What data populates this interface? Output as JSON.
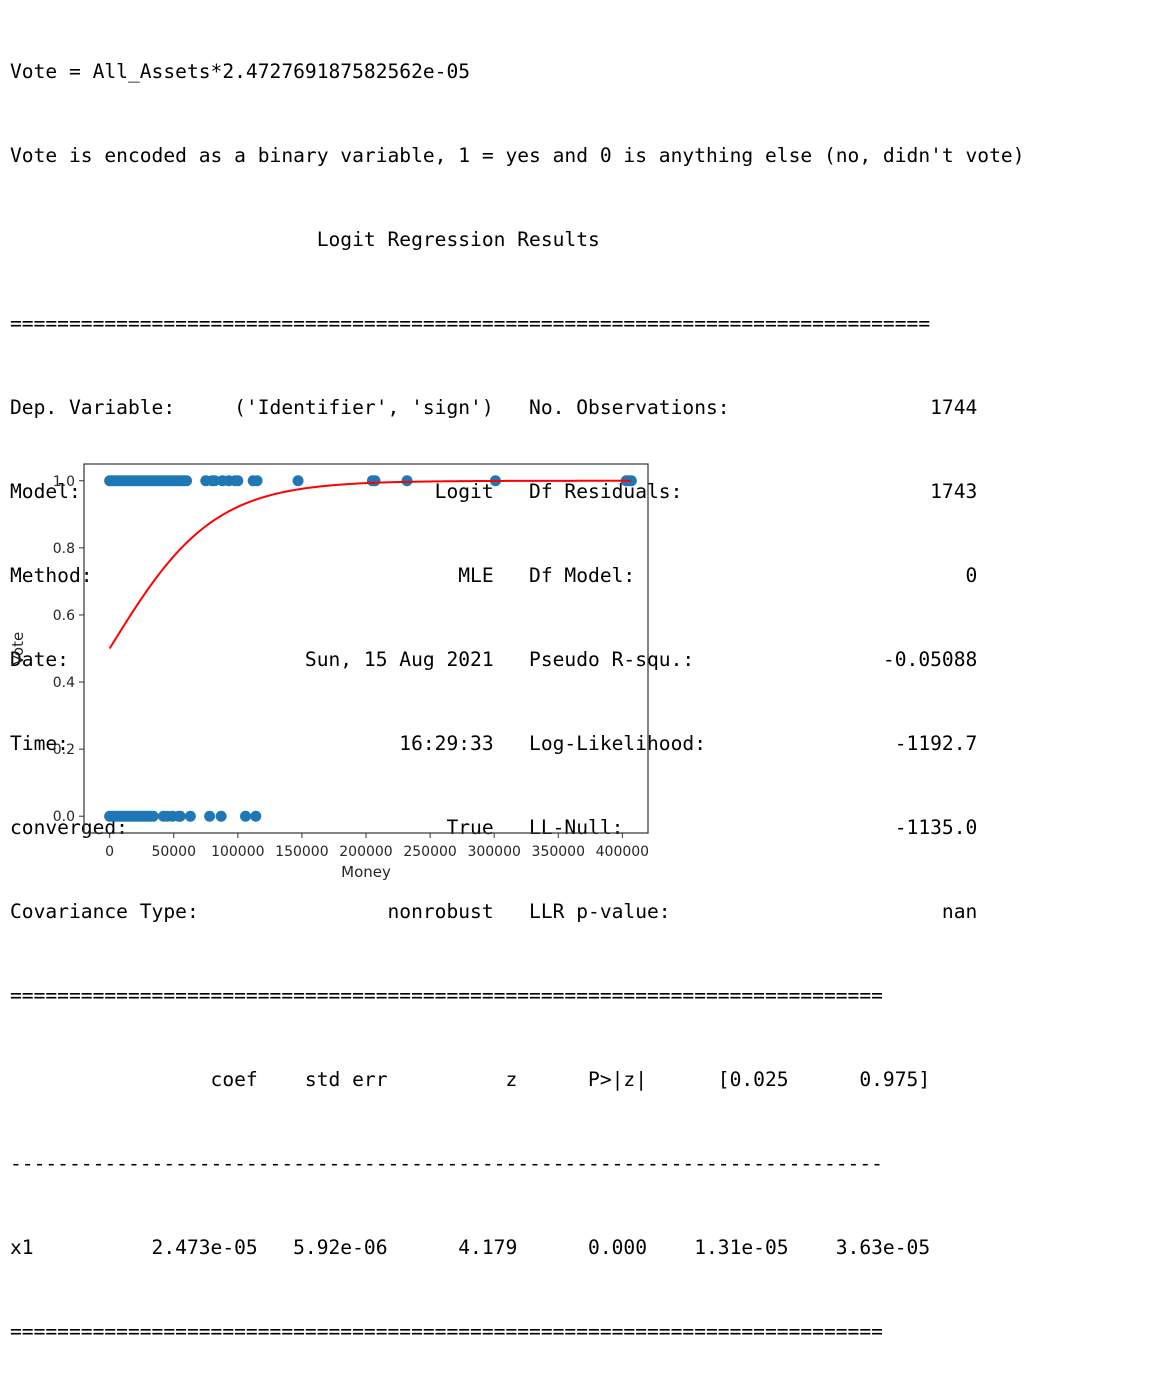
{
  "output": {
    "line1": "Vote = All_Assets*2.472769187582562e-05",
    "line2": "Vote is encoded as a binary variable, 1 = yes and 0 is anything else (no, didn't vote)",
    "title": "                          Logit Regression Results",
    "rule_double_long": "==============================================================================",
    "rule_double_short": "==========================================================================",
    "rule_single_short": "--------------------------------------------------------------------------",
    "summary_rows": [
      "Dep. Variable:     ('Identifier', 'sign')   No. Observations:                 1744",
      "Model:                              Logit   Df Residuals:                     1743",
      "Method:                               MLE   Df Model:                            0",
      "Date:                    Sun, 15 Aug 2021   Pseudo R-squ.:                -0.05088",
      "Time:                            16:29:33   Log-Likelihood:                -1192.7",
      "converged:                           True   LL-Null:                       -1135.0",
      "Covariance Type:                nonrobust   LLR p-value:                       nan"
    ],
    "coef_header": "                 coef    std err          z      P>|z|      [0.025      0.975]",
    "coef_row": "x1          2.473e-05   5.92e-06      4.179      0.000    1.31e-05    3.63e-05"
  },
  "chart_data": {
    "type": "scatter",
    "xlabel": "Money",
    "ylabel": "Vote",
    "xlim": [
      -20000,
      420000
    ],
    "ylim": [
      -0.05,
      1.05
    ],
    "xticks": [
      0,
      50000,
      100000,
      150000,
      200000,
      250000,
      300000,
      350000,
      400000
    ],
    "xtick_labels": [
      "0",
      "50000",
      "100000",
      "150000",
      "200000",
      "250000",
      "300000",
      "350000",
      "400000"
    ],
    "yticks": [
      0.0,
      0.2,
      0.4,
      0.6,
      0.8,
      1.0
    ],
    "ytick_labels": [
      "0.0",
      "0.2",
      "0.4",
      "0.6",
      "0.8",
      "1.0"
    ],
    "grid": false,
    "points_y1_x": [
      0,
      2000,
      4000,
      6000,
      8000,
      10000,
      12000,
      14000,
      16000,
      18000,
      20000,
      22000,
      24000,
      26000,
      28000,
      30000,
      32000,
      34000,
      36000,
      38000,
      40000,
      42000,
      44000,
      46000,
      48000,
      50000,
      52000,
      54000,
      56000,
      58000,
      60000,
      75000,
      80000,
      82000,
      88000,
      93000,
      98000,
      100000,
      112000,
      115000,
      147000,
      205000,
      207000,
      232000,
      301000,
      403000,
      405000,
      407000
    ],
    "points_y0_x": [
      0,
      2000,
      4000,
      6000,
      8000,
      10000,
      12000,
      14000,
      16000,
      18000,
      20000,
      22000,
      24000,
      26000,
      28000,
      30000,
      32000,
      34000,
      42000,
      45000,
      49000,
      54000,
      55000,
      63000,
      78000,
      87000,
      106000,
      114000
    ],
    "curve": {
      "coef": 2.472769187582562e-05,
      "x_start": 0,
      "x_end": 407000
    },
    "colors": {
      "points": "#1f77b4",
      "curve": "#ff0000",
      "axes": "#333333"
    }
  }
}
